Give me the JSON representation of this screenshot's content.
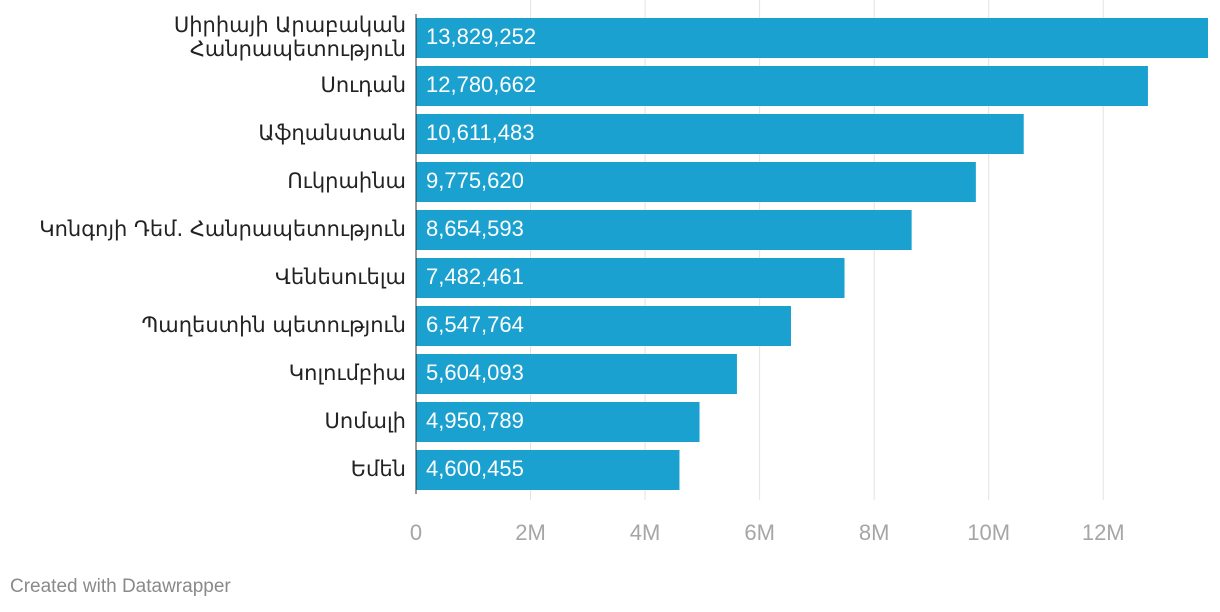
{
  "footer": {
    "credit": "Created with Datawrapper"
  },
  "colors": {
    "bar": "#1aa1cf",
    "grid": "#e3e3e3",
    "tick_text": "#a6a6a6",
    "label_text": "#222222"
  },
  "chart_data": {
    "type": "bar",
    "orientation": "horizontal",
    "title": "",
    "xlabel": "",
    "ylabel": "",
    "categories": [
      [
        "Սիրիայի Արաբական",
        "Հանրապետություն"
      ],
      [
        "Սուդան"
      ],
      [
        "Աֆղանստան"
      ],
      [
        "Ուկրաինա"
      ],
      [
        "Կոնգոյի Դեմ. Հանրապետություն"
      ],
      [
        "Վենեսուելա"
      ],
      [
        "Պաղեստին պետություն"
      ],
      [
        "Կոլումբիա"
      ],
      [
        "Սոմալի"
      ],
      [
        "Եմեն"
      ]
    ],
    "values": [
      13829252,
      12780662,
      10611483,
      9775620,
      8654593,
      7482461,
      6547764,
      5604093,
      4950789,
      4600455
    ],
    "value_labels": [
      "13,829,252",
      "12,780,662",
      "10,611,483",
      "9,775,620",
      "8,654,593",
      "7,482,461",
      "6,547,764",
      "5,604,093",
      "4,950,789",
      "4,600,455"
    ],
    "xlim": [
      0,
      13829252
    ],
    "ticks": [
      0,
      2000000,
      4000000,
      6000000,
      8000000,
      10000000,
      12000000
    ],
    "tick_labels": [
      "0",
      "2M",
      "4M",
      "6M",
      "8M",
      "10M",
      "12M"
    ],
    "grid": true,
    "legend": "none"
  }
}
